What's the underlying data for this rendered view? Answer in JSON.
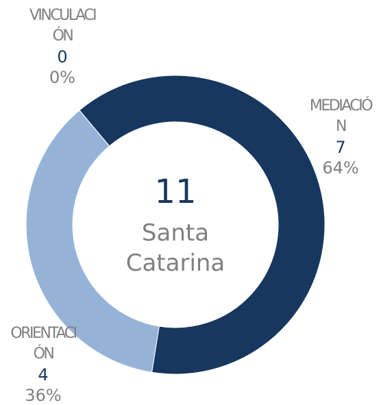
{
  "chart_data": {
    "type": "donut",
    "categories": [
      "MEDIACIÓN",
      "ORIENTACIÓN",
      "VINCULACIÓN"
    ],
    "values": [
      7,
      4,
      0
    ],
    "percent_labels": [
      "64%",
      "36%",
      "0%"
    ],
    "colors": [
      "#17375e",
      "#95b3d7",
      "#4f81bd"
    ],
    "center_value": 11,
    "center_label": "Santa Catarina"
  }
}
